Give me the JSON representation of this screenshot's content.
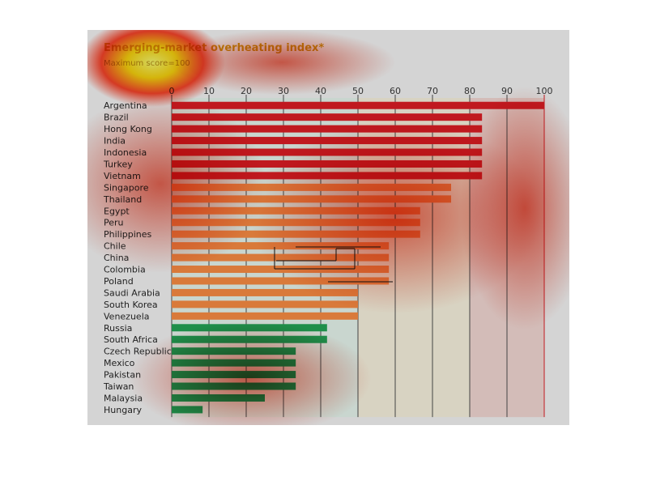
{
  "chart_data": {
    "type": "bar",
    "orientation": "horizontal",
    "title": "Emerging-market overheating index*",
    "subtitle": "Maximum score=100",
    "xlim": [
      0,
      100
    ],
    "xticks": [
      0,
      10,
      20,
      30,
      40,
      50,
      60,
      70,
      80,
      90,
      100
    ],
    "grid": true,
    "categories": [
      "Argentina",
      "Brazil",
      "Hong Kong",
      "India",
      "Indonesia",
      "Turkey",
      "Vietnam",
      "Singapore",
      "Thailand",
      "Egypt",
      "Peru",
      "Philippines",
      "Chile",
      "China",
      "Colombia",
      "Poland",
      "Saudi Arabia",
      "South Korea",
      "Venezuela",
      "Russia",
      "South Africa",
      "Czech Republic",
      "Mexico",
      "Pakistan",
      "Taiwan",
      "Malaysia",
      "Hungary"
    ],
    "values": [
      100,
      83.3,
      83.3,
      83.3,
      83.3,
      83.3,
      83.3,
      75,
      75,
      66.7,
      66.7,
      66.7,
      58.3,
      58.3,
      58.3,
      58.3,
      50,
      50,
      50,
      41.7,
      41.7,
      33.3,
      33.3,
      33.3,
      33.3,
      25,
      8.3
    ],
    "bar_colors": [
      "#c0191f",
      "#c0191f",
      "#c0191f",
      "#c0191f",
      "#c0191f",
      "#c0191f",
      "#c0191f",
      "#d97a3a",
      "#d97a3a",
      "#d97a3a",
      "#d97a3a",
      "#d97a3a",
      "#d97a3a",
      "#d97a3a",
      "#d97a3a",
      "#d97a3a",
      "#d97a3a",
      "#d97a3a",
      "#d97a3a",
      "#1f8f4a",
      "#1f8f4a",
      "#1f8f4a",
      "#1f8f4a",
      "#1f8f4a",
      "#1f8f4a",
      "#1f8f4a",
      "#1f8f4a"
    ],
    "zone_colors": {
      "green": "#c9d6cf",
      "amber": "#d8d3c2",
      "red": "#d3bcb8"
    },
    "accent_tick_color": "#c0191f"
  }
}
